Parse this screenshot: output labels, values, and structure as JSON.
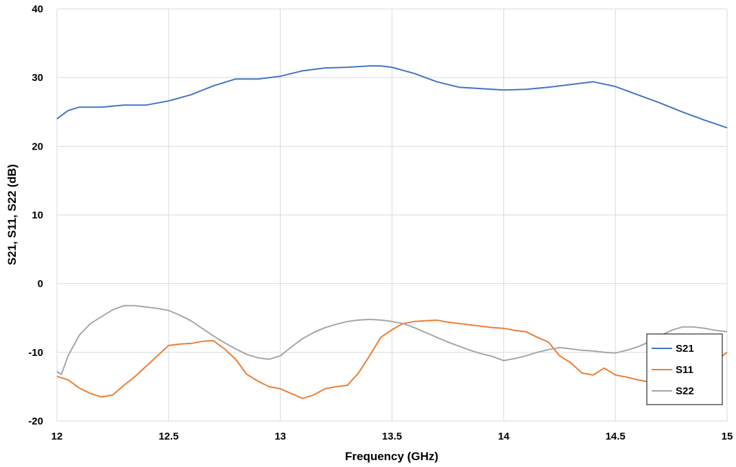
{
  "chart_data": {
    "type": "line",
    "xlabel": "Frequency (GHz)",
    "ylabel": "S21, S11, S22 (dB)",
    "xlim": [
      12,
      15
    ],
    "ylim": [
      -20,
      40
    ],
    "xticks": [
      12,
      12.5,
      13,
      13.5,
      14,
      14.5,
      15
    ],
    "xtick_labels": [
      "12",
      "12.5",
      "13",
      "13.5",
      "14",
      "14.5",
      "15"
    ],
    "yticks": [
      -20,
      -10,
      0,
      10,
      20,
      30,
      40
    ],
    "ytick_labels": [
      "-20",
      "-10",
      "0",
      "10",
      "20",
      "30",
      "40"
    ],
    "grid": true,
    "legend_position": "bottom-right",
    "series": [
      {
        "name": "S21",
        "color": "#4472C4",
        "x": [
          12.0,
          12.05,
          12.1,
          12.2,
          12.3,
          12.4,
          12.5,
          12.6,
          12.7,
          12.8,
          12.9,
          13.0,
          13.1,
          13.2,
          13.3,
          13.4,
          13.45,
          13.5,
          13.6,
          13.7,
          13.8,
          13.9,
          14.0,
          14.1,
          14.2,
          14.3,
          14.4,
          14.5,
          14.6,
          14.7,
          14.8,
          14.9,
          15.0
        ],
        "y": [
          24.0,
          25.2,
          25.7,
          25.7,
          26.0,
          26.0,
          26.6,
          27.5,
          28.8,
          29.8,
          29.8,
          30.2,
          31.0,
          31.4,
          31.5,
          31.7,
          31.7,
          31.5,
          30.6,
          29.4,
          28.6,
          28.4,
          28.2,
          28.3,
          28.6,
          29.0,
          29.4,
          28.7,
          27.5,
          26.3,
          25.0,
          23.8,
          22.7
        ]
      },
      {
        "name": "S11",
        "color": "#ED7D31",
        "x": [
          12.0,
          12.05,
          12.1,
          12.15,
          12.2,
          12.25,
          12.3,
          12.35,
          12.4,
          12.45,
          12.5,
          12.55,
          12.6,
          12.65,
          12.7,
          12.75,
          12.8,
          12.85,
          12.9,
          12.95,
          13.0,
          13.05,
          13.1,
          13.15,
          13.2,
          13.25,
          13.3,
          13.35,
          13.4,
          13.45,
          13.5,
          13.55,
          13.6,
          13.65,
          13.7,
          13.75,
          13.8,
          13.85,
          13.9,
          13.95,
          14.0,
          14.05,
          14.1,
          14.15,
          14.2,
          14.25,
          14.3,
          14.35,
          14.4,
          14.45,
          14.5,
          14.55,
          14.6,
          14.65,
          14.7,
          14.75,
          14.8,
          14.85,
          14.9,
          14.95,
          15.0
        ],
        "y": [
          -13.5,
          -14.0,
          -15.2,
          -16.0,
          -16.5,
          -16.2,
          -14.8,
          -13.5,
          -12.0,
          -10.5,
          -9.0,
          -8.8,
          -8.7,
          -8.4,
          -8.3,
          -9.5,
          -11.0,
          -13.2,
          -14.2,
          -15.0,
          -15.3,
          -16.0,
          -16.7,
          -16.2,
          -15.3,
          -15.0,
          -14.8,
          -13.0,
          -10.5,
          -7.8,
          -6.7,
          -5.8,
          -5.5,
          -5.4,
          -5.3,
          -5.6,
          -5.8,
          -6.0,
          -6.2,
          -6.4,
          -6.5,
          -6.8,
          -7.0,
          -7.8,
          -8.5,
          -10.5,
          -11.5,
          -13.0,
          -13.3,
          -12.3,
          -13.3,
          -13.6,
          -14.0,
          -14.3,
          -14.1,
          -13.6,
          -13.2,
          -12.8,
          -12.0,
          -11.2,
          -10.0
        ]
      },
      {
        "name": "S22",
        "color": "#A5A5A5",
        "x": [
          12.0,
          12.02,
          12.05,
          12.1,
          12.15,
          12.2,
          12.25,
          12.3,
          12.35,
          12.4,
          12.45,
          12.5,
          12.55,
          12.6,
          12.65,
          12.7,
          12.75,
          12.8,
          12.85,
          12.9,
          12.95,
          13.0,
          13.05,
          13.1,
          13.15,
          13.2,
          13.25,
          13.3,
          13.35,
          13.4,
          13.45,
          13.5,
          13.55,
          13.6,
          13.65,
          13.7,
          13.75,
          13.8,
          13.85,
          13.9,
          13.95,
          14.0,
          14.05,
          14.1,
          14.15,
          14.2,
          14.25,
          14.3,
          14.35,
          14.4,
          14.45,
          14.5,
          14.55,
          14.6,
          14.65,
          14.7,
          14.75,
          14.8,
          14.85,
          14.9,
          14.95,
          15.0
        ],
        "y": [
          -12.8,
          -13.2,
          -10.5,
          -7.5,
          -5.8,
          -4.8,
          -3.8,
          -3.2,
          -3.2,
          -3.4,
          -3.6,
          -3.9,
          -4.6,
          -5.4,
          -6.5,
          -7.6,
          -8.6,
          -9.5,
          -10.3,
          -10.8,
          -11.0,
          -10.5,
          -9.2,
          -8.0,
          -7.1,
          -6.4,
          -5.9,
          -5.5,
          -5.3,
          -5.2,
          -5.3,
          -5.5,
          -5.8,
          -6.4,
          -7.1,
          -7.8,
          -8.5,
          -9.1,
          -9.7,
          -10.2,
          -10.6,
          -11.2,
          -10.9,
          -10.5,
          -10.0,
          -9.6,
          -9.3,
          -9.5,
          -9.7,
          -9.8,
          -10.0,
          -10.1,
          -9.7,
          -9.2,
          -8.5,
          -7.6,
          -6.8,
          -6.3,
          -6.3,
          -6.5,
          -6.8,
          -7.0
        ]
      }
    ]
  }
}
